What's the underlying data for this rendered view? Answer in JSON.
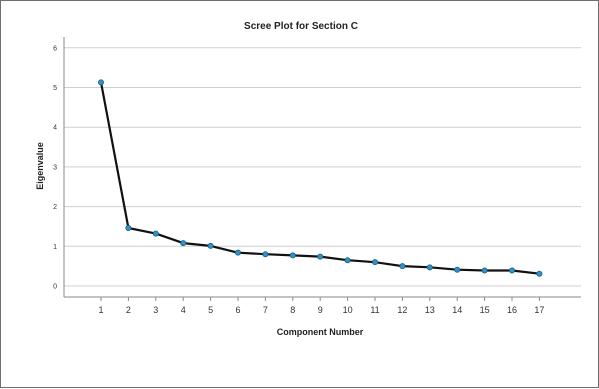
{
  "chart_data": {
    "type": "line",
    "title": "Scree Plot for Section C",
    "xlabel": "Component Number",
    "ylabel": "Eigenvalue",
    "categories": [
      "1",
      "2",
      "3",
      "4",
      "5",
      "6",
      "7",
      "8",
      "9",
      "10",
      "11",
      "12",
      "13",
      "14",
      "15",
      "16",
      "17"
    ],
    "series": [
      {
        "values": [
          5.13,
          1.46,
          1.32,
          1.08,
          1.01,
          0.84,
          0.8,
          0.77,
          0.74,
          0.65,
          0.6,
          0.5,
          0.47,
          0.41,
          0.39,
          0.39,
          0.31
        ]
      }
    ],
    "yticks": [
      "0",
      "1",
      "2",
      "3",
      "4",
      "5",
      "6"
    ],
    "ylim": [
      0,
      6
    ],
    "grid": true,
    "legend": "none",
    "colors": {
      "line": "#111111",
      "marker_fill": "#2f92c8",
      "marker_stroke": "#1b5f85",
      "grid": "#cfcfcf",
      "axis": "#8a8a8a"
    }
  }
}
